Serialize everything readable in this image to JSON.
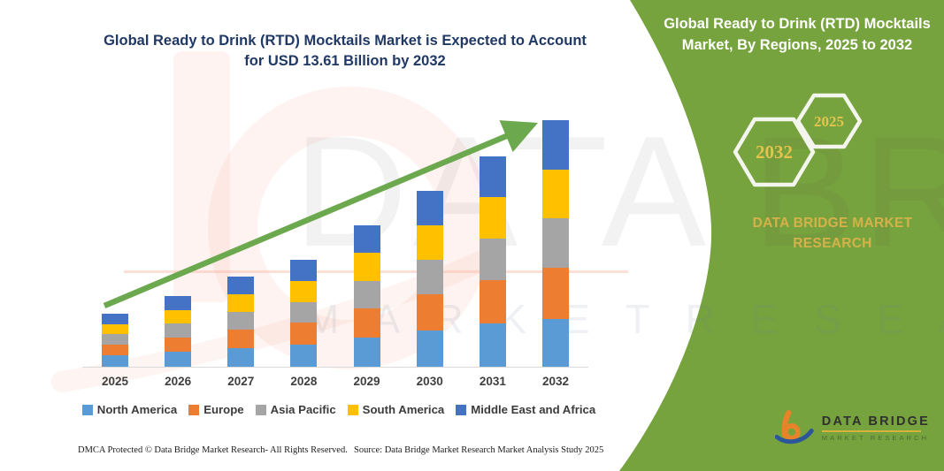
{
  "title": {
    "line1": "Global Ready to Drink (RTD) Mocktails Market is Expected to Account",
    "line2": "for USD 13.61 Billion by 2032"
  },
  "side_panel": {
    "heading_line1": "Global Ready to Drink (RTD) Mocktails",
    "heading_line2": "Market, By Regions, 2025 to 2032",
    "hexagon_years": [
      "2032",
      "2025"
    ],
    "brand_text": "DATA BRIDGE MARKET RESEARCH",
    "panel_color": "#77A33E",
    "hexagon_text_color": "#E4C44C"
  },
  "watermark": {
    "big_text": "DATA BRIDGE",
    "row_text": "M A R K E T   R E S E A R C H"
  },
  "logo": {
    "name": "DATA BRIDGE",
    "subtitle": "MARKET RESEARCH"
  },
  "footer": {
    "left": "DMCA Protected © Data Bridge Market Research-  All Rights Reserved.",
    "source": "Source: Data Bridge Market Research  Market Analysis Study 2025"
  },
  "chart_data": {
    "type": "bar",
    "stacked": true,
    "title": "Global Ready to Drink (RTD) Mocktails Market is Expected to Account for USD 13.61 Billion by 2032",
    "unit": "USD Billion",
    "categories": [
      "2025",
      "2026",
      "2027",
      "2028",
      "2029",
      "2030",
      "2031",
      "2032"
    ],
    "series": [
      {
        "name": "North America",
        "color": "#5B9BD5",
        "values": [
          0.62,
          0.82,
          1.04,
          1.22,
          1.62,
          1.99,
          2.38,
          2.66
        ]
      },
      {
        "name": "Europe",
        "color": "#ED7D31",
        "values": [
          0.6,
          0.8,
          1.02,
          1.2,
          1.6,
          2.0,
          2.4,
          2.8
        ]
      },
      {
        "name": "Asia Pacific",
        "color": "#A5A5A5",
        "values": [
          0.57,
          0.76,
          0.98,
          1.16,
          1.52,
          1.9,
          2.28,
          2.72
        ]
      },
      {
        "name": "South America",
        "color": "#FFC000",
        "values": [
          0.57,
          0.76,
          0.97,
          1.16,
          1.54,
          1.92,
          2.3,
          2.72
        ]
      },
      {
        "name": "Middle East and Africa",
        "color": "#4472C4",
        "values": [
          0.57,
          0.76,
          0.97,
          1.16,
          1.52,
          1.9,
          2.25,
          2.71
        ]
      }
    ],
    "totals": [
      2.93,
      3.9,
      4.98,
      5.9,
      7.8,
      9.71,
      11.61,
      13.61
    ],
    "ylim": [
      0,
      14
    ],
    "xlabel": "",
    "ylabel": "",
    "grid": false,
    "legend_position": "bottom",
    "annotations": [
      "upward trend arrow"
    ]
  }
}
